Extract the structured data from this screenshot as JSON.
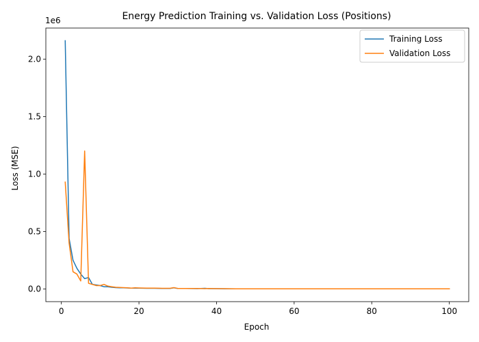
{
  "chart_data": {
    "type": "line",
    "title": "Energy Prediction Training vs. Validation Loss (Positions)",
    "xlabel": "Epoch",
    "ylabel": "Loss (MSE)",
    "y_offset_label": "1e6",
    "xlim": [
      -4,
      105
    ],
    "ylim": [
      -0.11,
      2.27
    ],
    "x_ticks": [
      0,
      20,
      40,
      60,
      80,
      100
    ],
    "x_tick_labels": [
      "0",
      "20",
      "40",
      "60",
      "80",
      "100"
    ],
    "y_ticks": [
      0,
      0.5,
      1.0,
      1.5,
      2.0
    ],
    "y_tick_labels": [
      "0.0",
      "0.5",
      "1.0",
      "1.5",
      "2.0"
    ],
    "grid": false,
    "legend_position": "top-right",
    "series": [
      {
        "name": "Training Loss",
        "color": "#1f77b4",
        "points": [
          [
            1,
            2.16
          ],
          [
            2,
            0.44
          ],
          [
            3,
            0.25
          ],
          [
            4,
            0.18
          ],
          [
            5,
            0.13
          ],
          [
            6,
            0.09
          ],
          [
            7,
            0.1
          ],
          [
            8,
            0.04
          ],
          [
            9,
            0.035
          ],
          [
            10,
            0.03
          ],
          [
            11,
            0.02
          ],
          [
            12,
            0.02
          ],
          [
            13,
            0.015
          ],
          [
            14,
            0.012
          ],
          [
            15,
            0.01
          ],
          [
            16,
            0.01
          ],
          [
            17,
            0.009
          ],
          [
            18,
            0.008
          ],
          [
            19,
            0.008
          ],
          [
            20,
            0.007
          ],
          [
            22,
            0.006
          ],
          [
            24,
            0.006
          ],
          [
            26,
            0.005
          ],
          [
            28,
            0.005
          ],
          [
            29,
            0.01
          ],
          [
            30,
            0.004
          ],
          [
            32,
            0.004
          ],
          [
            35,
            0.003
          ],
          [
            37,
            0.006
          ],
          [
            38,
            0.003
          ],
          [
            40,
            0.003
          ],
          [
            42,
            0.002
          ],
          [
            45,
            0.002
          ],
          [
            50,
            0.002
          ],
          [
            60,
            0.002
          ],
          [
            70,
            0.001
          ],
          [
            80,
            0.001
          ],
          [
            90,
            0.001
          ],
          [
            100,
            0.001
          ]
        ]
      },
      {
        "name": "Validation Loss",
        "color": "#ff7f0e",
        "points": [
          [
            1,
            0.93
          ],
          [
            2,
            0.4
          ],
          [
            3,
            0.15
          ],
          [
            4,
            0.13
          ],
          [
            5,
            0.07
          ],
          [
            6,
            1.2
          ],
          [
            7,
            0.05
          ],
          [
            8,
            0.04
          ],
          [
            9,
            0.03
          ],
          [
            10,
            0.03
          ],
          [
            11,
            0.04
          ],
          [
            12,
            0.025
          ],
          [
            13,
            0.02
          ],
          [
            14,
            0.015
          ],
          [
            15,
            0.013
          ],
          [
            16,
            0.012
          ],
          [
            17,
            0.01
          ],
          [
            18,
            0.008
          ],
          [
            19,
            0.01
          ],
          [
            20,
            0.009
          ],
          [
            22,
            0.008
          ],
          [
            24,
            0.007
          ],
          [
            26,
            0.006
          ],
          [
            28,
            0.006
          ],
          [
            29,
            0.012
          ],
          [
            30,
            0.005
          ],
          [
            32,
            0.005
          ],
          [
            35,
            0.004
          ],
          [
            37,
            0.003
          ],
          [
            38,
            0.004
          ],
          [
            40,
            0.003
          ],
          [
            42,
            0.003
          ],
          [
            45,
            0.002
          ],
          [
            50,
            0.002
          ],
          [
            60,
            0.002
          ],
          [
            70,
            0.002
          ],
          [
            80,
            0.001
          ],
          [
            90,
            0.001
          ],
          [
            100,
            0.001
          ]
        ]
      }
    ]
  }
}
